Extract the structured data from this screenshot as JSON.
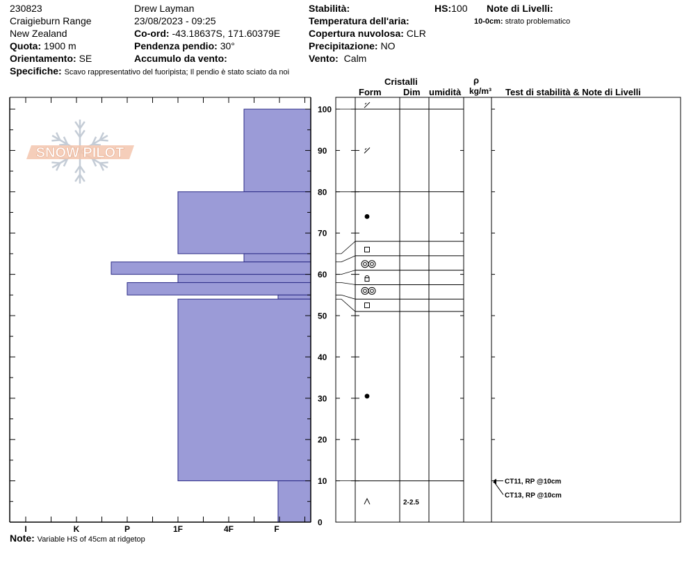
{
  "header": {
    "pit_id": "230823",
    "location": "Craigieburn Range",
    "country": "New Zealand",
    "observer": "Drew Layman",
    "datetime": "23/08/2023 - 09:25",
    "coord_label": "Co-ord:",
    "coord_value": "-43.18637S, 171.60379E",
    "quota_label": "Quota:",
    "quota_value": "1900 m",
    "pendenza_label": "Pendenza pendio:",
    "pendenza_value": "30°",
    "orientamento_label": "Orientamento:",
    "orientamento_value": "SE",
    "accumulo_label": "Accumulo da vento:",
    "stabilita_label": "Stabilità:",
    "temperatura_label": "Temperatura dell'aria:",
    "copertura_label": "Copertura nuvolosa:",
    "copertura_value": "CLR",
    "precipitazione_label": "Precipitazione:",
    "precipitazione_value": "NO",
    "vento_label": "Vento:",
    "vento_value": "Calm",
    "hs_label": "HS:",
    "hs_value": "100",
    "note_livelli_label": "Note di Livelli:",
    "layer_note_depth": "10-0cm:",
    "layer_note_text": "strato problematico",
    "specifiche_label": "Specifiche:",
    "specifiche_text": "Scavo rappresentativo del fuoripista; Il pendio è stato sciato da noi",
    "note_label": "Note:",
    "note_text": "Variable HS of 45cm at ridgetop"
  },
  "logo_text": "SNOW PILOT",
  "table_headers": {
    "cristalli": "Cristalli",
    "form": "Form",
    "dim": "Dim",
    "umidita": "umidità",
    "rho": "ρ",
    "density_unit": "kg/m³",
    "tests": "Test di stabilità & Note di Livelli"
  },
  "colors": {
    "hardness_fill": "#9b9bd7",
    "hardness_stroke": "#2a2a86",
    "logo_fill": "#f3c5ae"
  },
  "chart_data": {
    "type": "bar",
    "orientation": "horizontal",
    "title": "",
    "ylabel": "",
    "ylim": [
      0,
      100
    ],
    "y_ticks": [
      0,
      10,
      20,
      30,
      40,
      50,
      60,
      70,
      80,
      90,
      100
    ],
    "hardness_categories": [
      "I",
      "K",
      "P",
      "1F",
      "4F",
      "F"
    ],
    "layers": [
      {
        "bottom": 80,
        "top": 100,
        "hardness": "4F-"
      },
      {
        "bottom": 65,
        "top": 80,
        "hardness": "1F"
      },
      {
        "bottom": 63,
        "top": 65,
        "hardness": "4F-"
      },
      {
        "bottom": 60,
        "top": 63,
        "hardness": "P+"
      },
      {
        "bottom": 58,
        "top": 60,
        "hardness": "1F"
      },
      {
        "bottom": 55,
        "top": 58,
        "hardness": "P-"
      },
      {
        "bottom": 54,
        "top": 55,
        "hardness": "F+"
      },
      {
        "bottom": 10,
        "top": 54,
        "hardness": "1F"
      },
      {
        "bottom": 0,
        "top": 10,
        "hardness": "F+"
      }
    ],
    "layer_boundaries": [
      100,
      80,
      68,
      64.5,
      61,
      57.5,
      54,
      51,
      10
    ],
    "grain_symbols": [
      {
        "depth": 101,
        "symbol": "decomposing-fragments"
      },
      {
        "depth": 90,
        "symbol": "decomposing-fragments"
      },
      {
        "depth": 74,
        "symbol": "rounded-grains"
      },
      {
        "depth": 66,
        "symbol": "faceted-crystals"
      },
      {
        "depth": 62.5,
        "symbol": "surface-hoar"
      },
      {
        "depth": 59,
        "symbol": "faceted-rounded"
      },
      {
        "depth": 56,
        "symbol": "surface-hoar"
      },
      {
        "depth": 52.5,
        "symbol": "faceted-crystals"
      },
      {
        "depth": 30.5,
        "symbol": "rounded-grains"
      },
      {
        "depth": 5,
        "symbol": "depth-hoar"
      }
    ],
    "grain_sizes": [
      {
        "depth": 5,
        "size": "2-2.5"
      }
    ],
    "stability_tests": [
      {
        "depth": 10,
        "result": "CT11, RP @10cm"
      },
      {
        "depth": 10,
        "result": "CT13, RP @10cm"
      }
    ]
  }
}
